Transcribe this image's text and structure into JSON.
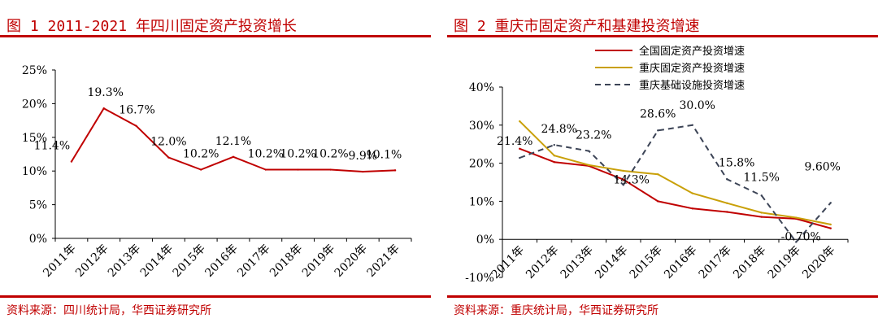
{
  "panels": [
    {
      "title": "图 1   2011-2021 年四川固定资产投资增长",
      "source": "资料来源：四川统计局，华西证券研究所"
    },
    {
      "title": "图 2   重庆市固定资产和基建投资增速",
      "source": "资料来源：重庆统计局，华西证券研究所"
    }
  ],
  "colors": {
    "accent": "#c00000",
    "series_gold": "#c9a008",
    "series_dash": "#3c4456"
  },
  "chart_data": [
    {
      "type": "line",
      "categories": [
        "2011年",
        "2012年",
        "2013年",
        "2014年",
        "2015年",
        "2016年",
        "2017年",
        "2018年",
        "2019年",
        "2020年",
        "2021年"
      ],
      "series": [
        {
          "values": [
            11.4,
            19.3,
            16.7,
            12.0,
            10.2,
            12.1,
            10.2,
            10.2,
            10.2,
            9.9,
            10.1
          ],
          "color": "#c00000"
        }
      ],
      "data_labels": [
        "11.4%",
        "19.3%",
        "16.7%",
        "12.0%",
        "10.2%",
        "12.1%",
        "10.2%",
        "10.2%",
        "10.2%",
        "9.9%",
        "10.1%"
      ],
      "ylim": [
        0,
        25
      ],
      "yticks": [
        "0%",
        "5%",
        "10%",
        "15%",
        "20%",
        "25%"
      ],
      "legend": "none",
      "grid": false
    },
    {
      "type": "line",
      "categories": [
        "2011年",
        "2012年",
        "2013年",
        "2014年",
        "2015年",
        "2016年",
        "2017年",
        "2018年",
        "2019年",
        "2020年"
      ],
      "series": [
        {
          "name": "全国固定资产投资增速",
          "values": [
            23.8,
            20.3,
            19.3,
            15.7,
            10.0,
            8.1,
            7.2,
            5.9,
            5.4,
            2.9
          ],
          "color": "#c00000",
          "dash": false
        },
        {
          "name": "重庆固定资产投资增速",
          "values": [
            31.0,
            22.0,
            19.5,
            18.0,
            17.1,
            12.1,
            9.5,
            7.0,
            5.7,
            3.9
          ],
          "color": "#c9a008",
          "dash": false
        },
        {
          "name": "重庆基础设施投资增速",
          "values": [
            21.4,
            24.8,
            23.2,
            14.3,
            28.6,
            30.0,
            15.8,
            11.5,
            -0.7,
            9.6
          ],
          "color": "#3c4456",
          "dash": true
        }
      ],
      "data_labels": [
        "21.4%",
        "24.8%",
        "23.2%",
        "14.3%",
        "28.6%",
        "30.0%",
        "15.8%",
        "11.5%",
        "-0.70%",
        "9.60%"
      ],
      "ylim": [
        -10,
        40
      ],
      "yticks": [
        "-10%",
        "0%",
        "10%",
        "20%",
        "30%",
        "40%"
      ],
      "legend": "top-right",
      "grid": false
    }
  ]
}
